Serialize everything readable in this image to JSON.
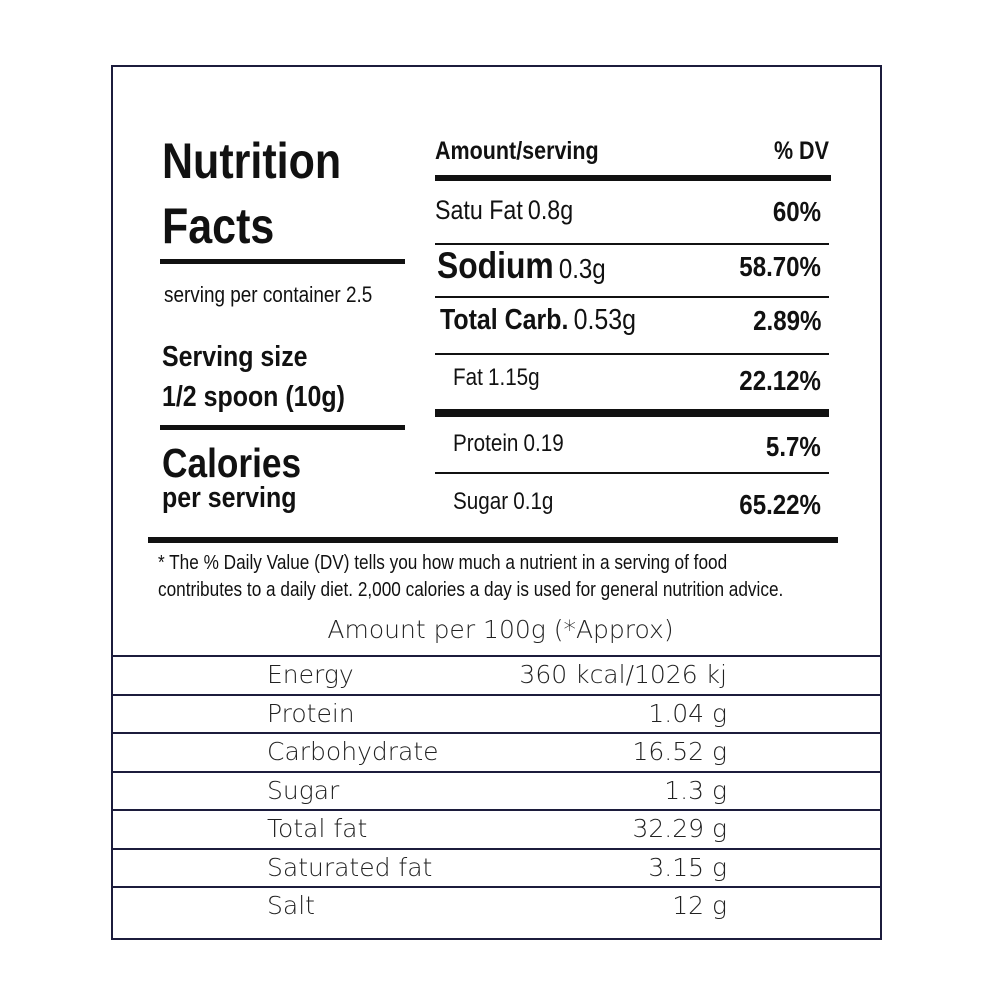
{
  "label": {
    "title_lines": [
      "Nutrition",
      "Facts"
    ],
    "servings_per_container": "serving per container 2.5",
    "serving_size": {
      "label": "Serving size",
      "value": "1/2 spoon (10g)"
    },
    "calories": {
      "label": "Calories",
      "sub": "per serving"
    },
    "dv_table": {
      "header": [
        "Amount/serving",
        "% DV"
      ],
      "rows": [
        {
          "name": "Satu Fat",
          "amount": "0.8g",
          "dv": "60%"
        },
        {
          "name": "Sodium",
          "amount": "0.3g",
          "dv": "58.70%"
        },
        {
          "name": "Total Carb.",
          "amount": "0.53g",
          "dv": "2.89%"
        },
        {
          "name": "Fat",
          "amount": "1.15g",
          "dv": "22.12%"
        },
        {
          "name": "Protein",
          "amount": "0.19",
          "dv": "5.7%"
        },
        {
          "name": "Sugar",
          "amount": "0.1g",
          "dv": "65.22%"
        }
      ]
    },
    "footnote": [
      "* The % Daily Value (DV) tells you how much a nutrient in a serving of food",
      "contributes to a daily diet. 2,000 calories a day is used for general nutrition advice."
    ],
    "per_100g": {
      "title": "Amount per 100g (*Approx)",
      "rows": [
        [
          "Energy",
          "360 kcal/1026 kj"
        ],
        [
          "Protein",
          "1.04 g"
        ],
        [
          "Carbohydrate",
          "16.52 g"
        ],
        [
          "Sugar",
          "1.3 g"
        ],
        [
          "Total fat",
          "32.29 g"
        ],
        [
          "Saturated fat",
          "3.15 g"
        ],
        [
          "Salt",
          "12 g"
        ]
      ]
    }
  }
}
